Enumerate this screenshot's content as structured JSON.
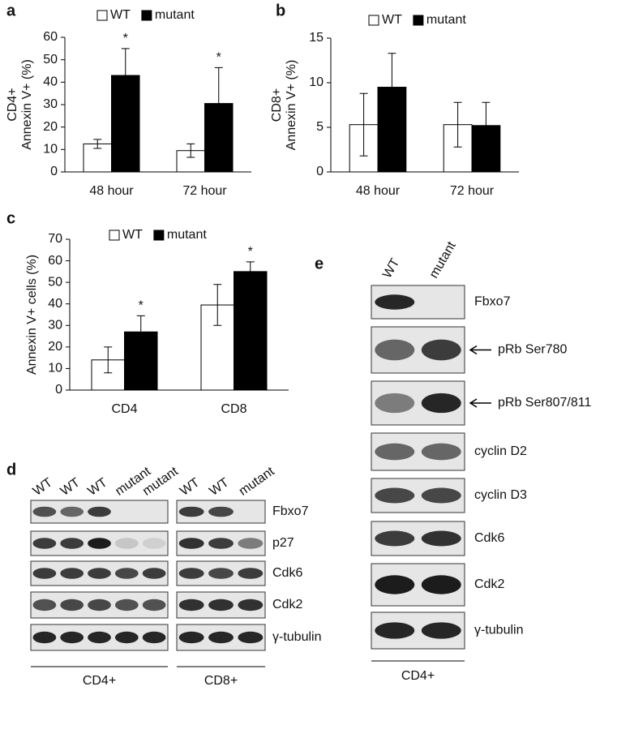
{
  "chart_data": [
    {
      "type": "bar",
      "panel": "a",
      "ylabel": [
        "CD4+",
        "Annexin V+ (%)"
      ],
      "categories": [
        "48 hour",
        "72 hour"
      ],
      "series": [
        {
          "name": "WT",
          "color": "#ffffff",
          "values": [
            12.5,
            9.5
          ],
          "errors": [
            2,
            3
          ]
        },
        {
          "name": "mutant",
          "color": "#000000",
          "values": [
            43,
            30.5
          ],
          "errors": [
            12,
            16
          ],
          "markers": [
            "*",
            "*"
          ]
        }
      ],
      "ylim": [
        0,
        60
      ],
      "yticks": [
        0,
        10,
        20,
        30,
        40,
        50,
        60
      ]
    },
    {
      "type": "bar",
      "panel": "b",
      "ylabel": [
        "CD8+",
        "Annexin V+ (%)"
      ],
      "categories": [
        "48 hour",
        "72 hour"
      ],
      "series": [
        {
          "name": "WT",
          "color": "#ffffff",
          "values": [
            5.3,
            5.3
          ],
          "errors": [
            3.5,
            2.5
          ]
        },
        {
          "name": "mutant",
          "color": "#000000",
          "values": [
            9.5,
            5.2
          ],
          "errors": [
            3.8,
            2.6
          ]
        }
      ],
      "ylim": [
        0,
        15
      ],
      "yticks": [
        0,
        5,
        10,
        15
      ]
    },
    {
      "type": "bar",
      "panel": "c",
      "ylabel": [
        "Annexin V+ cells (%)"
      ],
      "categories": [
        "CD4",
        "CD8"
      ],
      "series": [
        {
          "name": "WT",
          "color": "#ffffff",
          "values": [
            14,
            39.5
          ],
          "errors": [
            6,
            9.5
          ]
        },
        {
          "name": "mutant",
          "color": "#000000",
          "values": [
            27,
            55
          ],
          "errors": [
            7.5,
            4.5
          ],
          "markers": [
            "*",
            "*"
          ]
        }
      ],
      "ylim": [
        0,
        70
      ],
      "yticks": [
        0,
        10,
        20,
        30,
        40,
        50,
        60,
        70
      ]
    }
  ],
  "blot_d": {
    "panel": "d",
    "groups": [
      {
        "name": "CD4+",
        "lanes": [
          "WT",
          "WT",
          "WT",
          "mutant",
          "mutant"
        ]
      },
      {
        "name": "CD8+",
        "lanes": [
          "WT",
          "WT",
          "mutant"
        ]
      }
    ],
    "rows": [
      "Fbxo7",
      "p27",
      "Cdk6",
      "Cdk2",
      "γ-tubulin"
    ]
  },
  "blot_e": {
    "panel": "e",
    "group": "CD4+",
    "lanes": [
      "WT",
      "mutant"
    ],
    "rows": [
      "Fbxo7",
      "pRb Ser780",
      "pRb Ser807/811",
      "cyclin D2",
      "cyclin D3",
      "Cdk6",
      "Cdk2",
      "γ-tubulin"
    ]
  }
}
